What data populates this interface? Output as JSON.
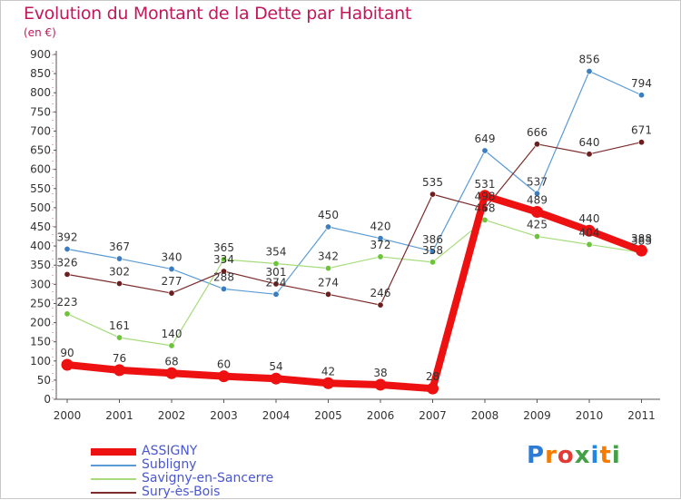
{
  "header": {
    "title": "Evolution du Montant de la Dette par Habitant",
    "subtitle": "(en €)"
  },
  "logo": {
    "text": "Proxiti",
    "letters": [
      "P",
      "r",
      "o",
      "x",
      "i",
      "t",
      "i"
    ],
    "colors": [
      "#2e7bd6",
      "#f57c00",
      "#e53935",
      "#43a047",
      "#1e88e5",
      "#f57c00",
      "#43a047"
    ]
  },
  "chart_data": {
    "type": "line",
    "title": "Evolution du Montant de la Dette par Habitant",
    "subtitle": "(en €)",
    "xlabel": "",
    "ylabel": "",
    "categories": [
      "2000",
      "2001",
      "2002",
      "2003",
      "2004",
      "2005",
      "2006",
      "2007",
      "2008",
      "2009",
      "2010",
      "2011"
    ],
    "ylim": [
      0,
      900
    ],
    "yticks": [
      0,
      50,
      100,
      150,
      200,
      250,
      300,
      350,
      400,
      450,
      500,
      550,
      600,
      650,
      700,
      750,
      800,
      850,
      900
    ],
    "grid": false,
    "legend_position": "bottom-left",
    "series": [
      {
        "name": "Subligny",
        "color": "#5b9bd5",
        "marker": "#3a7dc0",
        "width": 1.2,
        "values": [
          392,
          367,
          340,
          288,
          274,
          450,
          420,
          386,
          649,
          537,
          856,
          794
        ]
      },
      {
        "name": "Savigny-en-Sancerre",
        "color": "#a6dc7c",
        "marker": "#6cc43a",
        "width": 1.2,
        "values": [
          223,
          161,
          140,
          365,
          354,
          342,
          372,
          358,
          468,
          425,
          404,
          383
        ]
      },
      {
        "name": "Sury-ès-Bois",
        "color": "#7b2c2c",
        "marker": "#6b1f1f",
        "width": 1.2,
        "values": [
          326,
          302,
          277,
          334,
          301,
          274,
          246,
          535,
          498,
          666,
          640,
          671
        ]
      },
      {
        "name": "ASSIGNY",
        "color": "#ee1111",
        "marker": "#ee1111",
        "width": 8,
        "values": [
          90,
          76,
          68,
          60,
          54,
          42,
          38,
          28,
          531,
          489,
          440,
          388
        ]
      }
    ],
    "legend_order": [
      "ASSIGNY",
      "Subligny",
      "Savigny-en-Sancerre",
      "Sury-ès-Bois"
    ]
  }
}
